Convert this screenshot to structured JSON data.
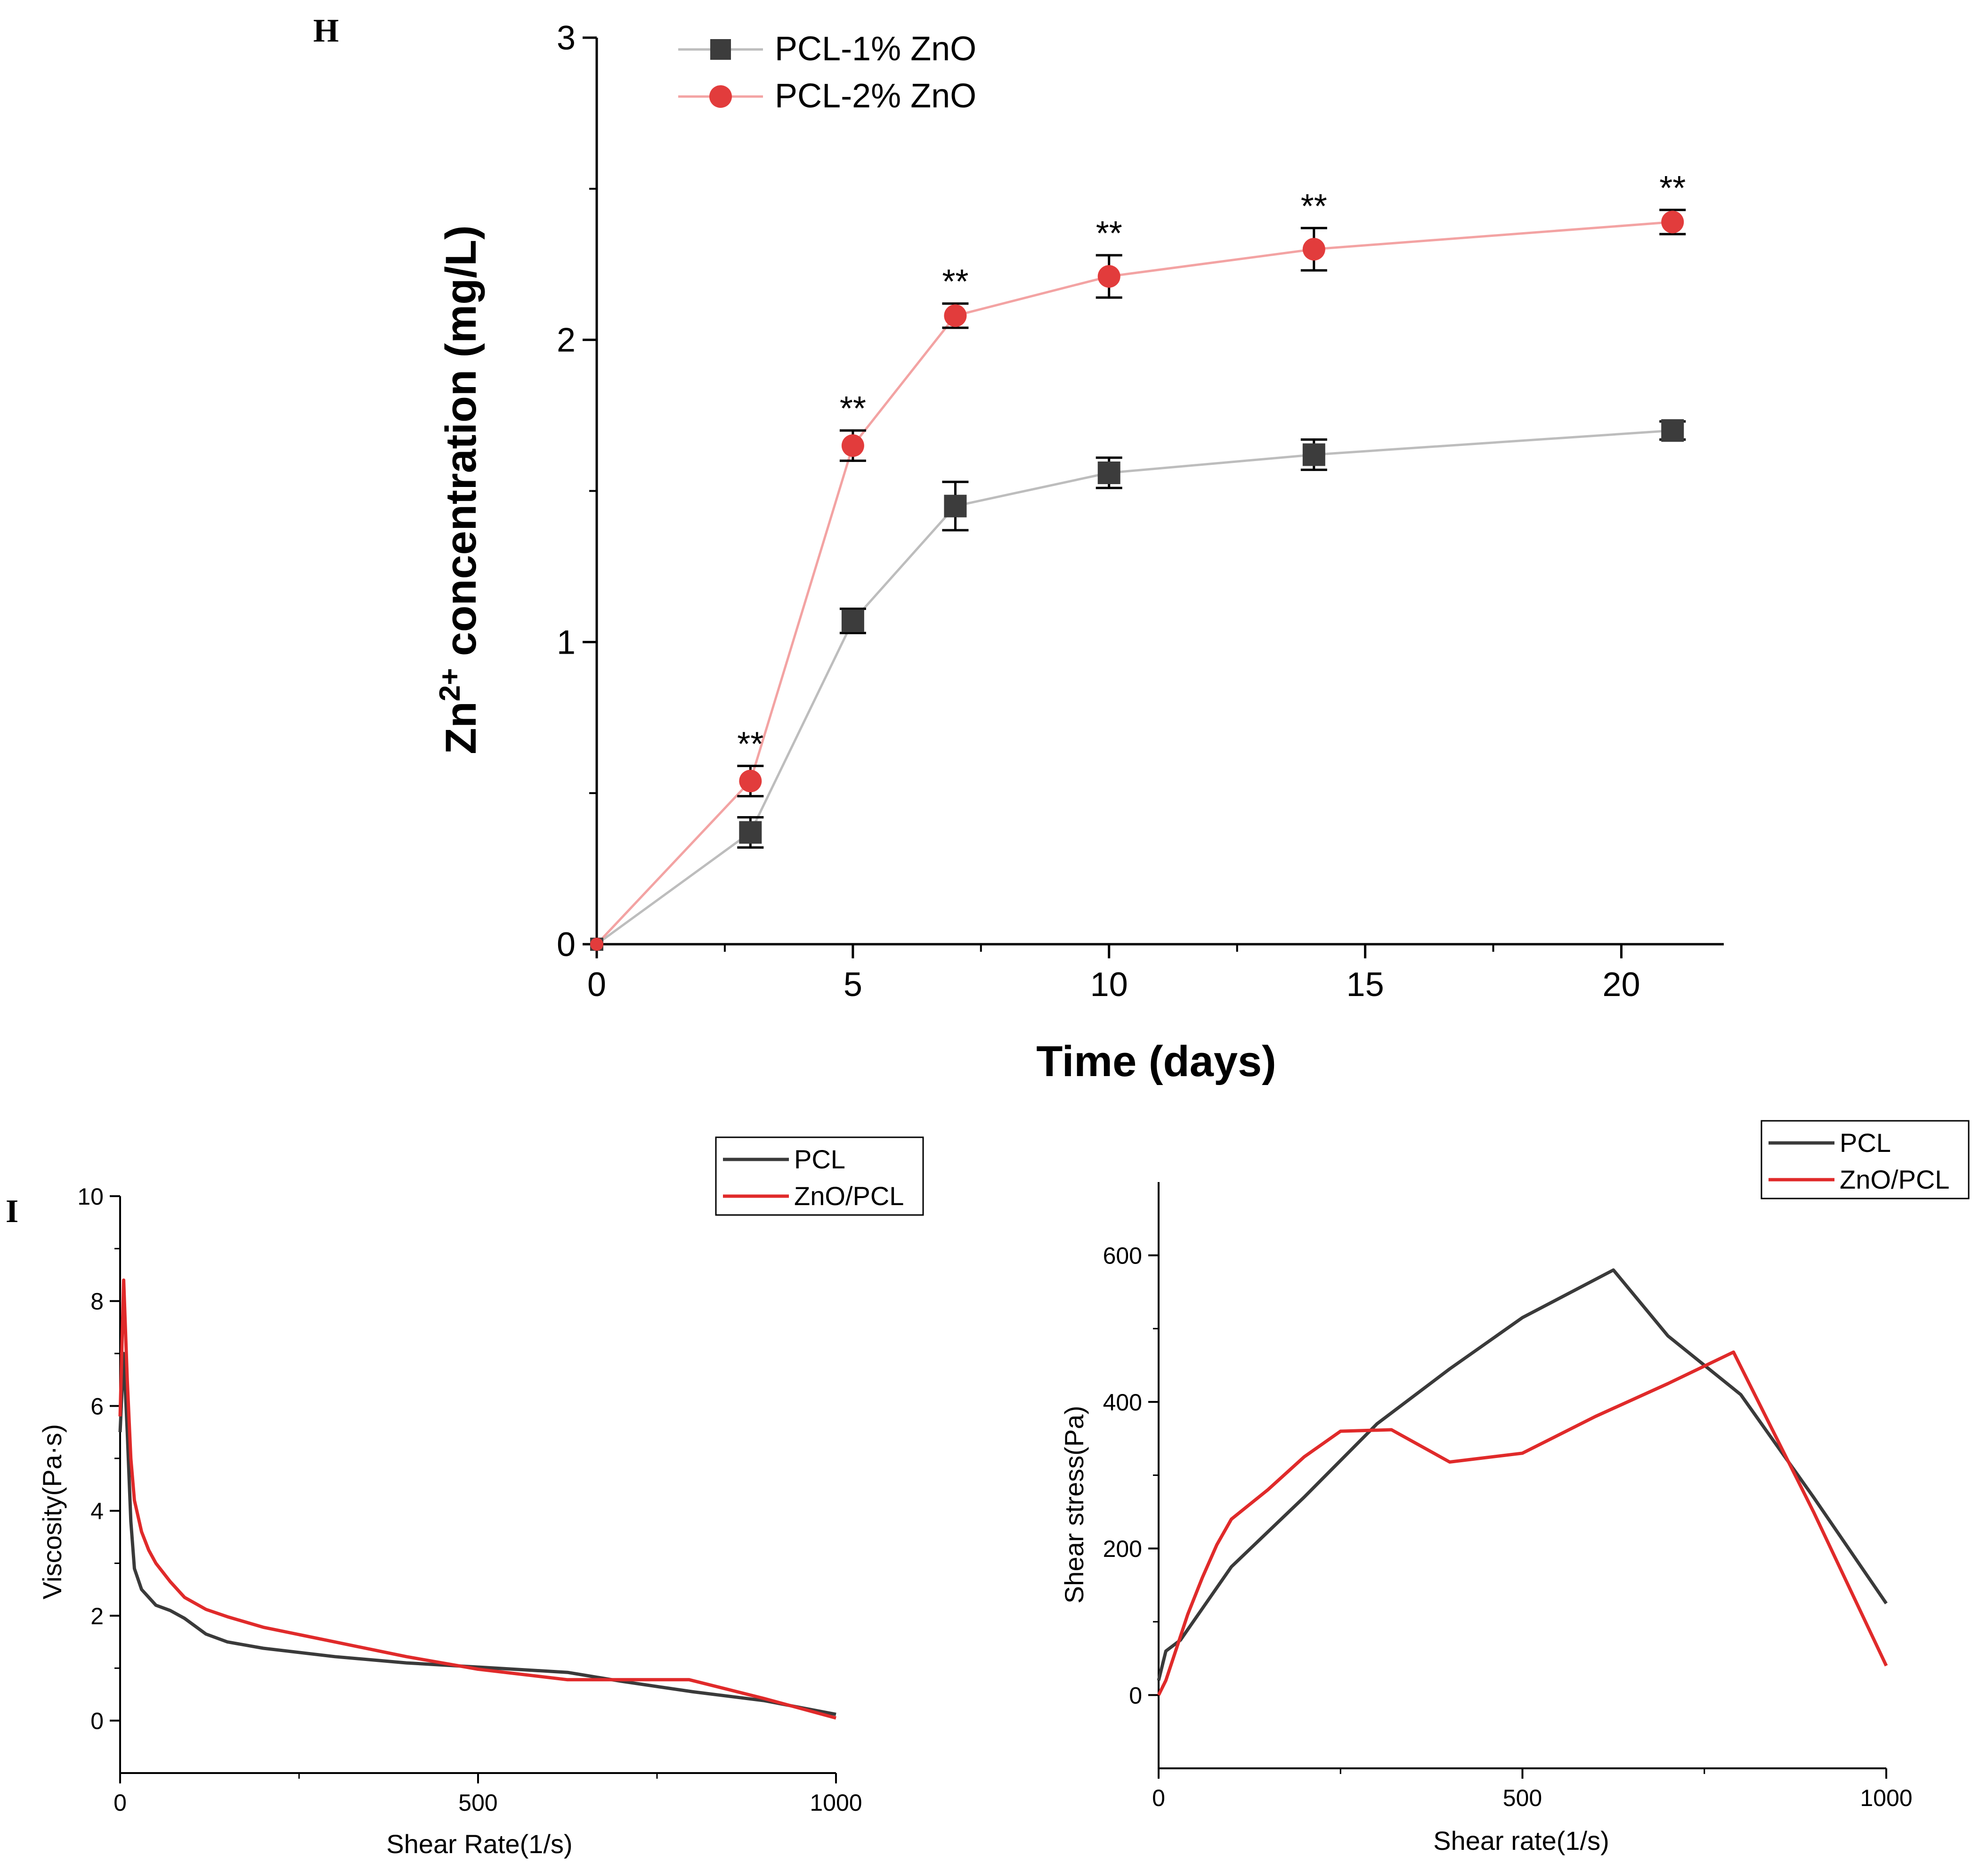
{
  "panel_labels": {
    "h": "H",
    "i": "I"
  },
  "colors": {
    "black": "#000000",
    "gray_series": "#3c3c3c",
    "red_series": "#e23c3c",
    "red_line": "#f3a3a3",
    "gray_line": "#bdbdbd",
    "pcl_curve": "#3a3a3a",
    "zno_curve": "#e02a2a"
  },
  "chart_data": [
    {
      "id": "zn-release",
      "type": "line",
      "title": "",
      "xlabel": "Time (days)",
      "ylabel_main": "Zn",
      "ylabel_sup": "2+",
      "ylabel_rest": " concentration (mg/L)",
      "xlim": [
        0,
        22
      ],
      "ylim": [
        0,
        3
      ],
      "xticks": [
        0,
        5,
        10,
        15,
        20
      ],
      "yticks": [
        0,
        1,
        2,
        3
      ],
      "x": [
        0,
        3,
        5,
        7,
        10,
        14,
        21
      ],
      "series": [
        {
          "name": "PCL-1% ZnO",
          "marker": "square",
          "values": [
            0,
            0.37,
            1.07,
            1.45,
            1.56,
            1.62,
            1.7
          ],
          "errors": [
            0,
            0.05,
            0.04,
            0.08,
            0.05,
            0.05,
            0.03
          ]
        },
        {
          "name": "PCL-2% ZnO",
          "marker": "circle",
          "values": [
            0,
            0.54,
            1.65,
            2.08,
            2.21,
            2.3,
            2.39
          ],
          "errors": [
            0,
            0.05,
            0.05,
            0.04,
            0.07,
            0.07,
            0.04
          ]
        }
      ],
      "significance": {
        "label": "**",
        "x": [
          3,
          5,
          7,
          10,
          14,
          21
        ]
      }
    },
    {
      "id": "viscosity",
      "type": "line",
      "xlabel": "Shear Rate(1/s)",
      "ylabel": "Viscosity(Pa·s)",
      "xlim": [
        0,
        1000
      ],
      "ylim": [
        -1,
        10
      ],
      "xticks": [
        0,
        500,
        1000
      ],
      "yticks": [
        0,
        2,
        4,
        6,
        8,
        10
      ],
      "series": [
        {
          "name": "PCL",
          "x": [
            0,
            5,
            10,
            15,
            20,
            30,
            40,
            50,
            70,
            90,
            120,
            150,
            200,
            300,
            400,
            500,
            625,
            700,
            800,
            900,
            1000
          ],
          "values": [
            5.5,
            7.0,
            5.5,
            3.8,
            2.9,
            2.5,
            2.35,
            2.2,
            2.1,
            1.95,
            1.65,
            1.5,
            1.38,
            1.22,
            1.1,
            1.02,
            0.92,
            0.75,
            0.55,
            0.38,
            0.12
          ]
        },
        {
          "name": "ZnO/PCL",
          "x": [
            0,
            5,
            10,
            15,
            20,
            30,
            40,
            50,
            70,
            90,
            120,
            150,
            200,
            300,
            400,
            500,
            625,
            700,
            795,
            900,
            1000
          ],
          "values": [
            5.8,
            8.4,
            6.5,
            5.0,
            4.2,
            3.6,
            3.25,
            3.0,
            2.65,
            2.35,
            2.12,
            1.98,
            1.78,
            1.5,
            1.22,
            0.98,
            0.78,
            0.78,
            0.78,
            0.42,
            0.05
          ]
        }
      ]
    },
    {
      "id": "shear-stress",
      "type": "line",
      "xlabel": "Shear rate(1/s)",
      "ylabel": "Shear stress(Pa)",
      "xlim": [
        0,
        1000
      ],
      "ylim": [
        -100,
        700
      ],
      "xticks": [
        0,
        500,
        1000
      ],
      "yticks": [
        0,
        200,
        400,
        600
      ],
      "series": [
        {
          "name": "PCL",
          "x": [
            0,
            10,
            30,
            100,
            200,
            300,
            400,
            500,
            625,
            700,
            800,
            900,
            1000
          ],
          "values": [
            20,
            60,
            75,
            175,
            270,
            370,
            445,
            515,
            580,
            490,
            410,
            270,
            125
          ]
        },
        {
          "name": "ZnO/PCL",
          "x": [
            0,
            10,
            20,
            40,
            60,
            80,
            100,
            150,
            200,
            250,
            320,
            400,
            500,
            600,
            700,
            790,
            900,
            1000
          ],
          "values": [
            0,
            20,
            50,
            110,
            160,
            205,
            240,
            280,
            325,
            360,
            362,
            318,
            330,
            380,
            425,
            468,
            250,
            40
          ]
        }
      ]
    }
  ]
}
